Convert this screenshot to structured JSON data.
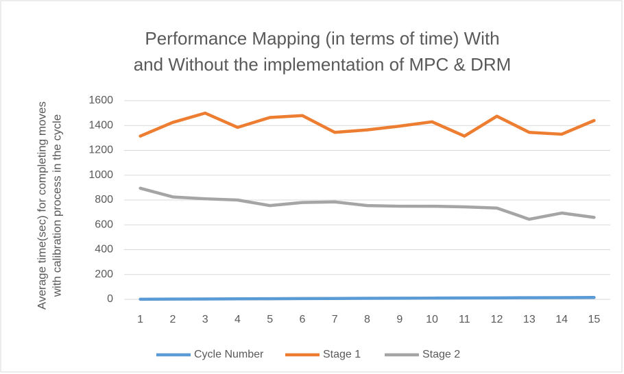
{
  "chart_data": {
    "type": "line",
    "title": [
      "Performance  Mapping (in terms of time) With",
      "and Without the implementation of MPC & DRM"
    ],
    "y_label": [
      "Average time(sec) for completing moves",
      "with calibration process in the cycle"
    ],
    "categories": [
      "1",
      "2",
      "3",
      "4",
      "5",
      "6",
      "7",
      "8",
      "9",
      "10",
      "11",
      "12",
      "13",
      "14",
      "15"
    ],
    "series": [
      {
        "name": "Cycle Number",
        "color": "#5b9bd5",
        "values": [
          1,
          2,
          3,
          4,
          5,
          6,
          7,
          8,
          9,
          10,
          11,
          12,
          13,
          14,
          15
        ]
      },
      {
        "name": "Stage 1",
        "color": "#ed7d31",
        "values": [
          1315,
          1425,
          1500,
          1385,
          1465,
          1480,
          1345,
          1365,
          1395,
          1430,
          1315,
          1475,
          1345,
          1330,
          1440
        ]
      },
      {
        "name": "Stage 2",
        "color": "#a5a5a5",
        "values": [
          895,
          825,
          810,
          800,
          755,
          780,
          785,
          755,
          750,
          750,
          745,
          735,
          645,
          695,
          660
        ]
      }
    ],
    "ylim": [
      0,
      1600
    ],
    "yticks": [
      0,
      200,
      400,
      600,
      800,
      1000,
      1200,
      1400,
      1600
    ],
    "grid": true,
    "legend": "bottom"
  }
}
